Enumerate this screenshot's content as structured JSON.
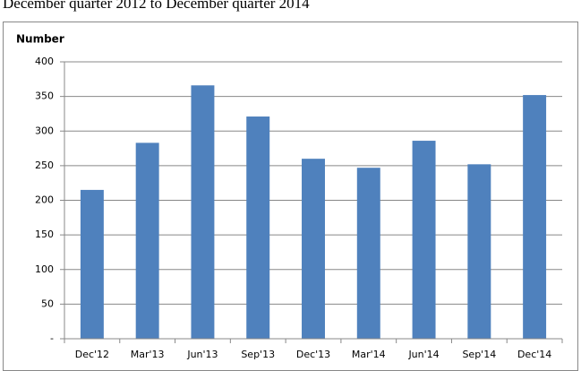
{
  "chart_data": {
    "type": "bar",
    "title": "December quarter 2012 to December quarter 2014",
    "y_label": "Number",
    "categories": [
      "Dec'12",
      "Mar'13",
      "Jun'13",
      "Sep'13",
      "Dec'13",
      "Mar'14",
      "Jun'14",
      "Sep'14",
      "Dec'14"
    ],
    "values": [
      215,
      283,
      366,
      321,
      260,
      247,
      286,
      252,
      352
    ],
    "color": "#4f81bd",
    "ylim": [
      0,
      400
    ],
    "yticks": [
      {
        "value": 0,
        "label": "-"
      },
      50,
      100,
      150,
      200,
      250,
      300,
      350,
      400
    ],
    "grid": true
  }
}
